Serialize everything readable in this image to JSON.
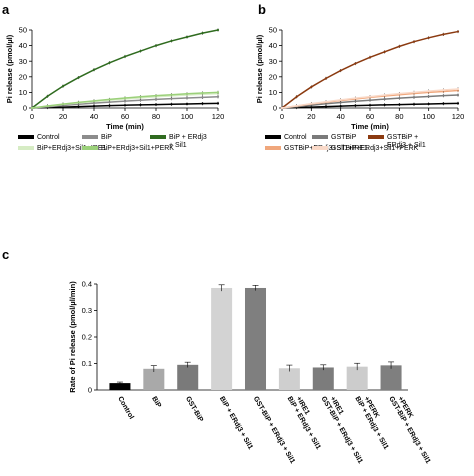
{
  "chart_data": [
    {
      "panel": "a",
      "type": "line",
      "xlabel": "Time (min)",
      "ylabel": "Pi release (pmol/µl)",
      "xlim": [
        0,
        120
      ],
      "ylim": [
        0,
        50
      ],
      "xticks": [
        0,
        20,
        40,
        60,
        80,
        100,
        120
      ],
      "yticks": [
        0,
        10,
        20,
        30,
        40,
        50
      ],
      "grid": false,
      "legend_position": "bottom",
      "series": [
        {
          "name": "Control",
          "color": "#000000",
          "legend_label": [
            "Control"
          ],
          "x": [
            0,
            10,
            20,
            30,
            40,
            50,
            60,
            70,
            80,
            90,
            100,
            110,
            120
          ],
          "y": [
            0,
            0.3,
            0.6,
            0.9,
            1.2,
            1.5,
            1.8,
            2.0,
            2.2,
            2.4,
            2.6,
            2.8,
            3.0
          ]
        },
        {
          "name": "BiP",
          "color": "#8c8c8c",
          "legend_label": [
            "BiP"
          ],
          "x": [
            0,
            10,
            20,
            30,
            40,
            50,
            60,
            70,
            80,
            90,
            100,
            110,
            120
          ],
          "y": [
            0,
            0.8,
            1.6,
            2.4,
            3.1,
            3.8,
            4.4,
            5.0,
            5.5,
            6.0,
            6.4,
            6.8,
            7.2
          ]
        },
        {
          "name": "BiP + ERdj3 + Sil1",
          "color": "#2f6b1f",
          "legend_label": [
            "BiP + ERdj3",
            "+ Sil1"
          ],
          "x": [
            0,
            10,
            20,
            30,
            40,
            50,
            60,
            70,
            80,
            90,
            100,
            110,
            120
          ],
          "y": [
            0,
            7.5,
            14,
            19.5,
            24.5,
            29,
            33,
            36.5,
            40,
            43,
            45.5,
            48,
            50
          ]
        },
        {
          "name": "BiP+ERdj3+Sil1+IRE1",
          "color": "#d6ecc4",
          "legend_label": [
            "BiP+ERdj3+Sil1+IRE1"
          ],
          "x": [
            0,
            10,
            20,
            30,
            40,
            50,
            60,
            70,
            80,
            90,
            100,
            110,
            120
          ],
          "y": [
            0,
            1.2,
            2.3,
            3.3,
            4.2,
            5.0,
            5.8,
            6.5,
            7.2,
            7.8,
            8.3,
            8.8,
            9.2
          ]
        },
        {
          "name": "BiP+ERdj3+Sil1+PERK",
          "color": "#9bd07a",
          "legend_label": [
            "BiP+ERdj3+Sil1+PERK"
          ],
          "x": [
            0,
            10,
            20,
            30,
            40,
            50,
            60,
            70,
            80,
            90,
            100,
            110,
            120
          ],
          "y": [
            0,
            1.3,
            2.5,
            3.6,
            4.6,
            5.5,
            6.4,
            7.2,
            7.9,
            8.5,
            9.1,
            9.6,
            10.0
          ]
        }
      ]
    },
    {
      "panel": "b",
      "type": "line",
      "xlabel": "Time (min)",
      "ylabel": "Pi release (pmol/µl)",
      "xlim": [
        0,
        120
      ],
      "ylim": [
        0,
        50
      ],
      "xticks": [
        0,
        20,
        40,
        60,
        80,
        100,
        120
      ],
      "yticks": [
        0,
        10,
        20,
        30,
        40,
        50
      ],
      "grid": false,
      "legend_position": "bottom",
      "series": [
        {
          "name": "Control",
          "color": "#000000",
          "legend_label": [
            "Control"
          ],
          "x": [
            0,
            10,
            20,
            30,
            40,
            50,
            60,
            70,
            80,
            90,
            100,
            110,
            120
          ],
          "y": [
            0,
            0.3,
            0.6,
            0.9,
            1.2,
            1.5,
            1.8,
            2.0,
            2.2,
            2.4,
            2.6,
            2.8,
            3.0
          ]
        },
        {
          "name": "GSTBiP",
          "color": "#7a7a7a",
          "legend_label": [
            "GSTBiP"
          ],
          "x": [
            0,
            10,
            20,
            30,
            40,
            50,
            60,
            70,
            80,
            90,
            100,
            110,
            120
          ],
          "y": [
            0,
            0.9,
            1.8,
            2.7,
            3.5,
            4.3,
            5.0,
            5.7,
            6.3,
            6.9,
            7.4,
            7.9,
            8.3
          ]
        },
        {
          "name": "GSTBiP + ERdj3 + Sil1",
          "color": "#8b3a10",
          "legend_label": [
            "GSTBiP +",
            "ERdj3 + Sil1"
          ],
          "x": [
            0,
            10,
            20,
            30,
            40,
            50,
            60,
            70,
            80,
            90,
            100,
            110,
            120
          ],
          "y": [
            0,
            7.2,
            13.5,
            19,
            24,
            28.5,
            32.5,
            36,
            39.5,
            42.5,
            45,
            47.2,
            49
          ]
        },
        {
          "name": "GSTBiP+ERdj3+Sil1+IRE1",
          "color": "#f0a77c",
          "legend_label": [
            "GSTBiP+ERdj3+Sil1+IRE1"
          ],
          "x": [
            0,
            10,
            20,
            30,
            40,
            50,
            60,
            70,
            80,
            90,
            100,
            110,
            120
          ],
          "y": [
            0,
            1.3,
            2.6,
            3.7,
            4.8,
            5.8,
            6.8,
            7.7,
            8.5,
            9.3,
            10.0,
            10.6,
            11.2
          ]
        },
        {
          "name": "GSTBiP+ERdj3+Sil1+PERK",
          "color": "#f9d9c8",
          "legend_label": [
            "GSTBiP+ERdj3+Sil1+PERK"
          ],
          "x": [
            0,
            10,
            20,
            30,
            40,
            50,
            60,
            70,
            80,
            90,
            100,
            110,
            120
          ],
          "y": [
            0,
            1.4,
            2.8,
            4.0,
            5.2,
            6.3,
            7.3,
            8.3,
            9.2,
            10.0,
            10.8,
            11.5,
            12.2
          ]
        }
      ]
    },
    {
      "panel": "c",
      "type": "bar",
      "ylabel": "Rate of Pi release (pmol/µl/min)",
      "ylim": [
        0,
        0.4
      ],
      "yticks": [
        0,
        0.1,
        0.2,
        0.3,
        0.4
      ],
      "ytick_labels": [
        "0",
        "0.1",
        "0.2",
        "0.3",
        "0.4"
      ],
      "grid": false,
      "categories": [
        [
          "Control"
        ],
        [
          "BiP"
        ],
        [
          "GST-BiP"
        ],
        [
          "BiP + ERdj3 + Sil1"
        ],
        [
          "GST-BiP + ERdj3 + Sil1"
        ],
        [
          "BiP + ERdj3 + Sil1",
          "+IRE1"
        ],
        [
          "GST-BiP + ERdj3 + Sil1",
          "+IRE1"
        ],
        [
          "BiP + ERdj3 + Sil1",
          "+PERK"
        ],
        [
          "GST-BiP + ERdj3 + Sil1",
          "+PERK"
        ]
      ],
      "values": [
        0.026,
        0.08,
        0.095,
        0.385,
        0.385,
        0.082,
        0.085,
        0.088,
        0.093
      ],
      "errors": [
        0.004,
        0.012,
        0.01,
        0.012,
        0.01,
        0.012,
        0.01,
        0.013,
        0.013
      ],
      "colors": [
        "#000000",
        "#a9a9a9",
        "#7a7a7a",
        "#d3d3d3",
        "#7f7f7f",
        "#cfcfcf",
        "#7c7c7c",
        "#cccccc",
        "#7f7f7f"
      ]
    }
  ]
}
